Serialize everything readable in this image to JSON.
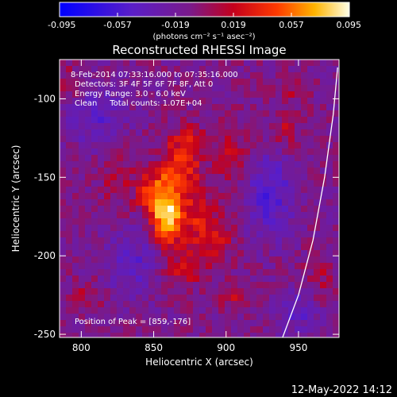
{
  "chart_data": {
    "type": "heatmap",
    "title": "Reconstructed RHESSI Image",
    "xlabel": "Heliocentric X (arcsec)",
    "ylabel": "Heliocentric Y (arcsec)",
    "xlim": [
      785,
      978
    ],
    "ylim": [
      -252,
      -75
    ],
    "xticks": [
      800,
      850,
      900,
      950
    ],
    "yticks": [
      -100,
      -150,
      -200,
      -250
    ],
    "colorbar": {
      "min": -0.095,
      "max": 0.095,
      "ticks": [
        "-0.095",
        "-0.057",
        "-0.019",
        "0.019",
        "0.057",
        "0.095"
      ],
      "units": "(photons cm⁻² s⁻¹ asec⁻²)",
      "colormap": "blue-purple-red-yellow-white"
    },
    "annotations": {
      "time_range": "8-Feb-2014 07:33:16.000 to 07:35:16.000",
      "detectors": "Detectors: 3F 4F 5F 6F 7F 8F, Att 0",
      "energy_range": "Energy Range: 3.0 - 6.0 keV",
      "method_counts": "Clean     Total counts: 1.07E+04",
      "peak_position": "Position of Peak = [859,-176]"
    },
    "peak": {
      "x": 859,
      "y": -176
    },
    "limb_curve": [
      [
        939,
        -252
      ],
      [
        950,
        -225
      ],
      [
        960,
        -190
      ],
      [
        968,
        -150
      ],
      [
        974,
        -110
      ],
      [
        977,
        -80
      ]
    ],
    "blobs": [
      {
        "x": 859,
        "y": -176,
        "amp": 0.095,
        "sx": 7,
        "sy": 12
      },
      {
        "x": 850,
        "y": -160,
        "amp": 0.05,
        "sx": 8,
        "sy": 9
      },
      {
        "x": 866,
        "y": -148,
        "amp": 0.045,
        "sx": 9,
        "sy": 8
      },
      {
        "x": 872,
        "y": -130,
        "amp": 0.04,
        "sx": 10,
        "sy": 9
      },
      {
        "x": 878,
        "y": -170,
        "amp": 0.035,
        "sx": 10,
        "sy": 14
      },
      {
        "x": 890,
        "y": -190,
        "amp": 0.03,
        "sx": 12,
        "sy": 10
      },
      {
        "x": 870,
        "y": -210,
        "amp": 0.03,
        "sx": 10,
        "sy": 8
      },
      {
        "x": 905,
        "y": -135,
        "amp": 0.025,
        "sx": 10,
        "sy": 14
      },
      {
        "x": 825,
        "y": -150,
        "amp": 0.02,
        "sx": 10,
        "sy": 12
      },
      {
        "x": 905,
        "y": -225,
        "amp": 0.035,
        "sx": 6,
        "sy": 6
      },
      {
        "x": 940,
        "y": -120,
        "amp": 0.025,
        "sx": 8,
        "sy": 8
      },
      {
        "x": 945,
        "y": -95,
        "amp": 0.02,
        "sx": 7,
        "sy": 6
      },
      {
        "x": 805,
        "y": -225,
        "amp": 0.02,
        "sx": 8,
        "sy": 7
      },
      {
        "x": 795,
        "y": -90,
        "amp": 0.02,
        "sx": 8,
        "sy": 8
      },
      {
        "x": 965,
        "y": -215,
        "amp": 0.02,
        "sx": 8,
        "sy": 10
      },
      {
        "x": 835,
        "y": -205,
        "amp": -0.03,
        "sx": 14,
        "sy": 14
      },
      {
        "x": 930,
        "y": -160,
        "amp": -0.04,
        "sx": 12,
        "sy": 18
      },
      {
        "x": 810,
        "y": -110,
        "amp": -0.03,
        "sx": 14,
        "sy": 14
      },
      {
        "x": 950,
        "y": -235,
        "amp": -0.03,
        "sx": 10,
        "sy": 10
      }
    ]
  },
  "footer": {
    "date": "12-May-2022 14:12"
  }
}
